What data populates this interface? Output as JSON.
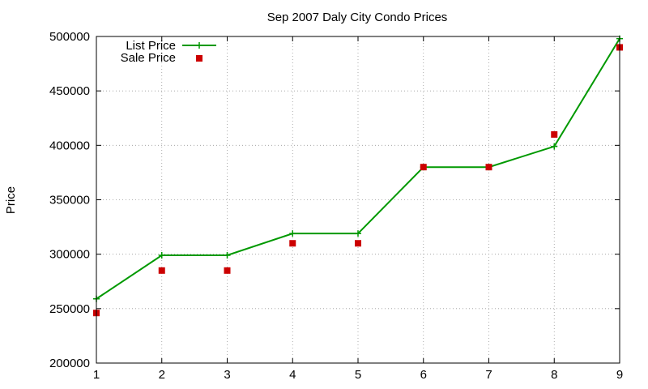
{
  "chart_data": {
    "type": "line",
    "title": "Sep 2007 Daly City Condo Prices",
    "xlabel": "",
    "ylabel": "Price",
    "x": [
      1,
      2,
      3,
      4,
      5,
      6,
      7,
      8,
      9
    ],
    "xlim": [
      1,
      9
    ],
    "ylim": [
      200000,
      500000
    ],
    "xticks": [
      "1",
      "2",
      "3",
      "4",
      "5",
      "6",
      "7",
      "8",
      "9"
    ],
    "yticks": [
      "200000",
      "250000",
      "300000",
      "350000",
      "400000",
      "450000",
      "500000"
    ],
    "grid": true,
    "legend_position": "top-left",
    "series": [
      {
        "name": "List Price",
        "style": "line-with-plus-markers",
        "color": "#009900",
        "values": [
          259000,
          299000,
          299000,
          319000,
          319000,
          380000,
          380000,
          399000,
          498000
        ]
      },
      {
        "name": "Sale Price",
        "style": "square-markers",
        "color": "#cc0000",
        "values": [
          246000,
          285000,
          285000,
          310000,
          310000,
          380000,
          380000,
          410000,
          490000
        ]
      }
    ]
  }
}
